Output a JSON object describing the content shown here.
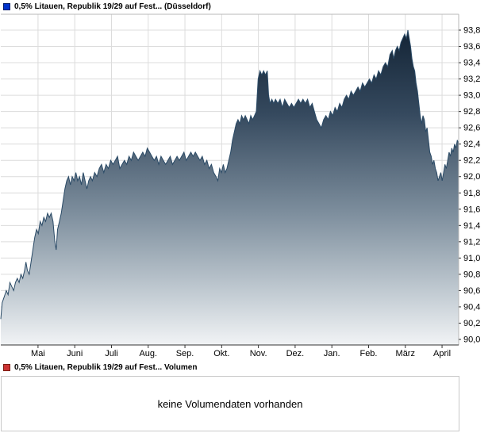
{
  "chart_data": {
    "type": "area",
    "title": "0,5% Litauen, Republik 19/29 auf Fest... (Düsseldorf)",
    "xlabel": "",
    "ylabel": "",
    "ylim": [
      90.0,
      93.8
    ],
    "y_tick_step": 0.2,
    "y_tick_labels": [
      "93,8",
      "93,6",
      "93,4",
      "93,2",
      "93,0",
      "92,8",
      "92,6",
      "92,4",
      "92,2",
      "92,0",
      "91,8",
      "91,6",
      "91,4",
      "91,2",
      "91,0",
      "90,8",
      "90,6",
      "90,4",
      "90,2",
      "90,0"
    ],
    "x_tick_labels": [
      "Mai",
      "Juni",
      "Juli",
      "Aug.",
      "Sep.",
      "Okt.",
      "Nov.",
      "Dez.",
      "Jan.",
      "Feb.",
      "März",
      "April"
    ],
    "grid": true,
    "legend_position": "top-left",
    "series": [
      {
        "name": "0,5% Litauen, Republik 19/29 auf Fest...",
        "points": [
          [
            0.0,
            90.25
          ],
          [
            0.003,
            90.45
          ],
          [
            0.006,
            90.5
          ],
          [
            0.009,
            90.55
          ],
          [
            0.012,
            90.6
          ],
          [
            0.016,
            90.55
          ],
          [
            0.02,
            90.7
          ],
          [
            0.024,
            90.65
          ],
          [
            0.028,
            90.6
          ],
          [
            0.032,
            90.7
          ],
          [
            0.036,
            90.75
          ],
          [
            0.04,
            90.7
          ],
          [
            0.044,
            90.8
          ],
          [
            0.048,
            90.75
          ],
          [
            0.052,
            90.85
          ],
          [
            0.055,
            90.95
          ],
          [
            0.058,
            90.85
          ],
          [
            0.062,
            90.8
          ],
          [
            0.066,
            90.95
          ],
          [
            0.07,
            91.1
          ],
          [
            0.074,
            91.25
          ],
          [
            0.078,
            91.35
          ],
          [
            0.082,
            91.3
          ],
          [
            0.086,
            91.45
          ],
          [
            0.09,
            91.4
          ],
          [
            0.094,
            91.5
          ],
          [
            0.098,
            91.45
          ],
          [
            0.102,
            91.55
          ],
          [
            0.106,
            91.5
          ],
          [
            0.11,
            91.55
          ],
          [
            0.114,
            91.45
          ],
          [
            0.118,
            91.2
          ],
          [
            0.121,
            91.1
          ],
          [
            0.124,
            91.35
          ],
          [
            0.128,
            91.45
          ],
          [
            0.132,
            91.55
          ],
          [
            0.136,
            91.7
          ],
          [
            0.14,
            91.85
          ],
          [
            0.144,
            91.95
          ],
          [
            0.148,
            92.0
          ],
          [
            0.152,
            91.9
          ],
          [
            0.156,
            92.0
          ],
          [
            0.16,
            91.95
          ],
          [
            0.164,
            92.05
          ],
          [
            0.168,
            91.95
          ],
          [
            0.172,
            92.0
          ],
          [
            0.176,
            91.9
          ],
          [
            0.18,
            92.05
          ],
          [
            0.184,
            91.95
          ],
          [
            0.188,
            91.85
          ],
          [
            0.192,
            91.95
          ],
          [
            0.196,
            92.0
          ],
          [
            0.2,
            91.95
          ],
          [
            0.205,
            92.05
          ],
          [
            0.21,
            92.0
          ],
          [
            0.215,
            92.1
          ],
          [
            0.22,
            92.15
          ],
          [
            0.225,
            92.05
          ],
          [
            0.23,
            92.15
          ],
          [
            0.235,
            92.1
          ],
          [
            0.24,
            92.2
          ],
          [
            0.245,
            92.15
          ],
          [
            0.25,
            92.2
          ],
          [
            0.255,
            92.25
          ],
          [
            0.26,
            92.1
          ],
          [
            0.265,
            92.15
          ],
          [
            0.27,
            92.2
          ],
          [
            0.275,
            92.15
          ],
          [
            0.28,
            92.25
          ],
          [
            0.285,
            92.2
          ],
          [
            0.29,
            92.3
          ],
          [
            0.295,
            92.25
          ],
          [
            0.3,
            92.2
          ],
          [
            0.305,
            92.25
          ],
          [
            0.31,
            92.3
          ],
          [
            0.315,
            92.25
          ],
          [
            0.32,
            92.35
          ],
          [
            0.325,
            92.3
          ],
          [
            0.33,
            92.25
          ],
          [
            0.335,
            92.2
          ],
          [
            0.34,
            92.25
          ],
          [
            0.345,
            92.15
          ],
          [
            0.35,
            92.25
          ],
          [
            0.355,
            92.2
          ],
          [
            0.36,
            92.15
          ],
          [
            0.365,
            92.2
          ],
          [
            0.37,
            92.25
          ],
          [
            0.375,
            92.15
          ],
          [
            0.38,
            92.2
          ],
          [
            0.385,
            92.25
          ],
          [
            0.39,
            92.2
          ],
          [
            0.395,
            92.25
          ],
          [
            0.4,
            92.3
          ],
          [
            0.405,
            92.2
          ],
          [
            0.41,
            92.25
          ],
          [
            0.415,
            92.3
          ],
          [
            0.42,
            92.25
          ],
          [
            0.425,
            92.3
          ],
          [
            0.43,
            92.25
          ],
          [
            0.435,
            92.2
          ],
          [
            0.44,
            92.25
          ],
          [
            0.445,
            92.15
          ],
          [
            0.45,
            92.2
          ],
          [
            0.455,
            92.1
          ],
          [
            0.46,
            92.15
          ],
          [
            0.465,
            92.05
          ],
          [
            0.47,
            92.0
          ],
          [
            0.474,
            91.95
          ],
          [
            0.478,
            92.1
          ],
          [
            0.482,
            92.05
          ],
          [
            0.486,
            92.15
          ],
          [
            0.49,
            92.05
          ],
          [
            0.494,
            92.1
          ],
          [
            0.498,
            92.2
          ],
          [
            0.502,
            92.3
          ],
          [
            0.506,
            92.45
          ],
          [
            0.51,
            92.55
          ],
          [
            0.514,
            92.65
          ],
          [
            0.518,
            92.7
          ],
          [
            0.522,
            92.65
          ],
          [
            0.526,
            92.75
          ],
          [
            0.53,
            92.7
          ],
          [
            0.534,
            92.75
          ],
          [
            0.538,
            92.7
          ],
          [
            0.542,
            92.65
          ],
          [
            0.546,
            92.75
          ],
          [
            0.55,
            92.7
          ],
          [
            0.554,
            92.75
          ],
          [
            0.558,
            92.8
          ],
          [
            0.562,
            93.2
          ],
          [
            0.566,
            93.3
          ],
          [
            0.57,
            93.25
          ],
          [
            0.574,
            93.3
          ],
          [
            0.578,
            93.25
          ],
          [
            0.582,
            93.3
          ],
          [
            0.585,
            93.0
          ],
          [
            0.588,
            92.9
          ],
          [
            0.592,
            92.95
          ],
          [
            0.596,
            92.9
          ],
          [
            0.6,
            92.95
          ],
          [
            0.605,
            92.9
          ],
          [
            0.61,
            92.95
          ],
          [
            0.615,
            92.85
          ],
          [
            0.62,
            92.95
          ],
          [
            0.625,
            92.9
          ],
          [
            0.63,
            92.85
          ],
          [
            0.635,
            92.9
          ],
          [
            0.64,
            92.85
          ],
          [
            0.645,
            92.9
          ],
          [
            0.65,
            92.95
          ],
          [
            0.655,
            92.9
          ],
          [
            0.66,
            92.95
          ],
          [
            0.665,
            92.9
          ],
          [
            0.67,
            92.95
          ],
          [
            0.675,
            92.85
          ],
          [
            0.68,
            92.9
          ],
          [
            0.685,
            92.8
          ],
          [
            0.69,
            92.7
          ],
          [
            0.695,
            92.65
          ],
          [
            0.7,
            92.6
          ],
          [
            0.705,
            92.7
          ],
          [
            0.71,
            92.75
          ],
          [
            0.715,
            92.7
          ],
          [
            0.72,
            92.8
          ],
          [
            0.725,
            92.75
          ],
          [
            0.73,
            92.85
          ],
          [
            0.735,
            92.8
          ],
          [
            0.74,
            92.9
          ],
          [
            0.745,
            92.85
          ],
          [
            0.75,
            92.95
          ],
          [
            0.755,
            93.0
          ],
          [
            0.76,
            92.95
          ],
          [
            0.765,
            93.05
          ],
          [
            0.77,
            93.0
          ],
          [
            0.775,
            93.05
          ],
          [
            0.78,
            93.1
          ],
          [
            0.785,
            93.05
          ],
          [
            0.79,
            93.15
          ],
          [
            0.795,
            93.1
          ],
          [
            0.8,
            93.15
          ],
          [
            0.805,
            93.2
          ],
          [
            0.81,
            93.15
          ],
          [
            0.815,
            93.25
          ],
          [
            0.82,
            93.2
          ],
          [
            0.825,
            93.3
          ],
          [
            0.83,
            93.25
          ],
          [
            0.835,
            93.35
          ],
          [
            0.84,
            93.4
          ],
          [
            0.845,
            93.35
          ],
          [
            0.85,
            93.5
          ],
          [
            0.855,
            93.55
          ],
          [
            0.858,
            93.45
          ],
          [
            0.862,
            93.55
          ],
          [
            0.866,
            93.6
          ],
          [
            0.87,
            93.55
          ],
          [
            0.874,
            93.65
          ],
          [
            0.878,
            93.7
          ],
          [
            0.882,
            93.75
          ],
          [
            0.886,
            93.7
          ],
          [
            0.889,
            93.8
          ],
          [
            0.892,
            93.7
          ],
          [
            0.895,
            93.6
          ],
          [
            0.898,
            93.45
          ],
          [
            0.901,
            93.35
          ],
          [
            0.904,
            93.3
          ],
          [
            0.907,
            93.15
          ],
          [
            0.91,
            93.05
          ],
          [
            0.913,
            92.9
          ],
          [
            0.916,
            92.75
          ],
          [
            0.919,
            92.65
          ],
          [
            0.922,
            92.75
          ],
          [
            0.925,
            92.7
          ],
          [
            0.928,
            92.55
          ],
          [
            0.931,
            92.6
          ],
          [
            0.934,
            92.45
          ],
          [
            0.937,
            92.3
          ],
          [
            0.94,
            92.25
          ],
          [
            0.943,
            92.15
          ],
          [
            0.946,
            92.2
          ],
          [
            0.949,
            92.1
          ],
          [
            0.952,
            92.05
          ],
          [
            0.955,
            91.95
          ],
          [
            0.958,
            92.0
          ],
          [
            0.961,
            92.05
          ],
          [
            0.964,
            91.95
          ],
          [
            0.967,
            92.05
          ],
          [
            0.97,
            92.15
          ],
          [
            0.973,
            92.1
          ],
          [
            0.976,
            92.2
          ],
          [
            0.979,
            92.3
          ],
          [
            0.982,
            92.25
          ],
          [
            0.985,
            92.35
          ],
          [
            0.988,
            92.3
          ],
          [
            0.991,
            92.4
          ],
          [
            0.994,
            92.35
          ],
          [
            0.997,
            92.45
          ],
          [
            1.0,
            92.4
          ]
        ]
      }
    ]
  },
  "volume": {
    "legend": "0,5% Litauen, Republik 19/29 auf Fest... Volumen",
    "message": "keine Volumendaten vorhanden"
  },
  "colors": {
    "price_marker": "#0033cc",
    "price_marker_border": "#001a66",
    "volume_marker": "#cc3333",
    "volume_marker_border": "#7a1d12",
    "line": "#2a4a66",
    "grid": "#dcdcdc",
    "axis": "#333333",
    "border": "#b8b8b8",
    "area_gradient": [
      [
        "0",
        "#0d1d2e"
      ],
      [
        "0.3",
        "#35495e"
      ],
      [
        "0.6",
        "#7d8e9d"
      ],
      [
        "0.85",
        "#c4cdd4"
      ],
      [
        "1",
        "#f1f3f5"
      ]
    ]
  }
}
